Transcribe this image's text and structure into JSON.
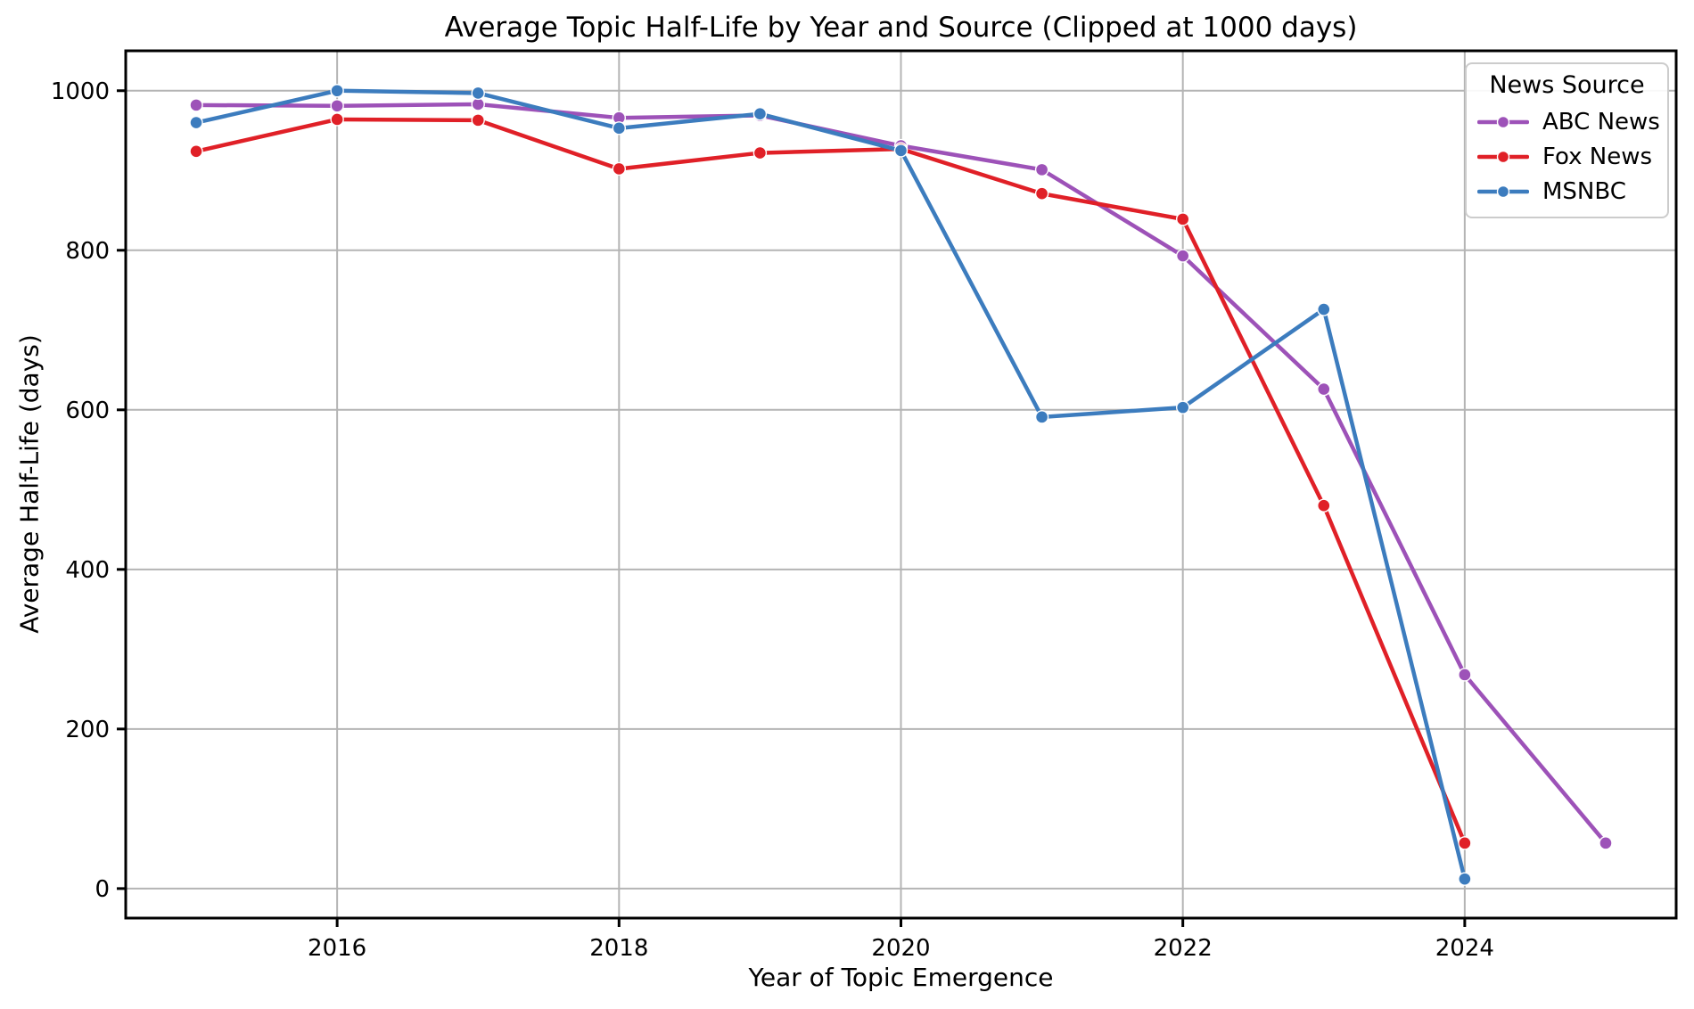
{
  "figure": {
    "background": "#ffffff"
  },
  "chart_data": {
    "type": "line",
    "title": "Average Topic Half-Life by Year and Source (Clipped at 1000 days)",
    "xlabel": "Year of Topic Emergence",
    "ylabel": "Average Half-Life (days)",
    "xlim": [
      2014.5,
      2025.5
    ],
    "ylim": [
      -37,
      1050
    ],
    "xticks": [
      2016,
      2018,
      2020,
      2022,
      2024
    ],
    "yticks": [
      0,
      200,
      400,
      600,
      800,
      1000
    ],
    "grid": true,
    "grid_color": "#b4b4b4",
    "spine_color": "#000000",
    "legend": {
      "title": "News Source",
      "position": "upper right"
    },
    "series": [
      {
        "name": "ABC News",
        "color": "#9d52b8",
        "x": [
          2015,
          2016,
          2017,
          2018,
          2019,
          2020,
          2021,
          2022,
          2023,
          2024,
          2025
        ],
        "y": [
          982,
          981,
          983,
          966,
          969,
          931,
          901,
          793,
          626,
          268,
          57
        ]
      },
      {
        "name": "Fox News",
        "color": "#e02027",
        "x": [
          2015,
          2016,
          2017,
          2018,
          2019,
          2020,
          2021,
          2022,
          2023,
          2024
        ],
        "y": [
          924,
          964,
          963,
          902,
          922,
          927,
          871,
          839,
          480,
          57
        ]
      },
      {
        "name": "MSNBC",
        "color": "#3c7cbe",
        "x": [
          2015,
          2016,
          2017,
          2018,
          2019,
          2020,
          2021,
          2022,
          2023,
          2024
        ],
        "y": [
          960,
          1000,
          997,
          953,
          971,
          925,
          591,
          603,
          726,
          12
        ]
      }
    ]
  }
}
